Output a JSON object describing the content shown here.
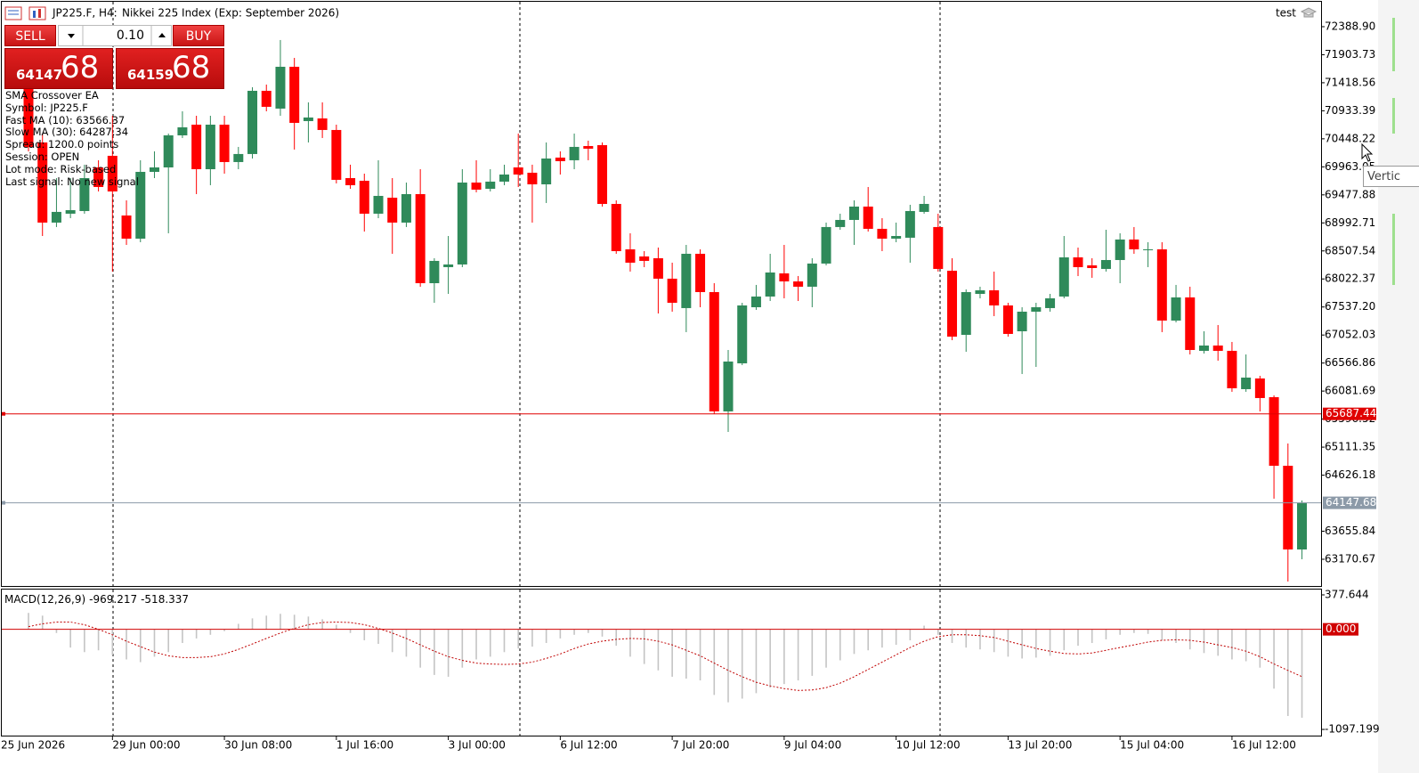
{
  "header": {
    "symbol": "JP225.F, H4:",
    "description": "Nikkei 225 Index (Exp: September 2026)",
    "account": "test"
  },
  "trade_panel": {
    "sell": "SELL",
    "buy": "BUY",
    "lot": "0.10",
    "sell_main": "64147",
    "sell_pips": "68",
    "buy_main": "64159",
    "buy_pips": "68"
  },
  "info_lines": [
    "SMA Crossover EA",
    "Symbol: JP225.F",
    "Fast MA (10): 63566.37",
    "Slow MA (30): 64287.34",
    "Spread: 1200.0 points",
    "Session: OPEN",
    "Lot mode: Risk-based",
    "Last signal: No new signal"
  ],
  "tooltip": "Vertic",
  "chart_data": [
    {
      "type": "candlestick",
      "up_color": "#2f8a5a",
      "down_color": "#ff0000",
      "period_start": "25 Jun 2026",
      "categories": [
        null,
        null,
        null,
        null,
        null,
        null,
        "29 Jun 00:00",
        null,
        null,
        null,
        null,
        null,
        null,
        null,
        "30 Jun 08:00",
        null,
        null,
        null,
        null,
        null,
        null,
        null,
        "1 Jul 16:00",
        null,
        null,
        null,
        null,
        null,
        null,
        null,
        "3 Jul 00:00",
        null,
        null,
        null,
        null,
        null,
        null,
        null,
        "6 Jul 12:00",
        null,
        null,
        null,
        null,
        null,
        null,
        null,
        "7 Jul 20:00",
        null,
        null,
        null,
        null,
        null,
        null,
        null,
        "9 Jul 04:00",
        null,
        null,
        null,
        null,
        null,
        null,
        null,
        "10 Jul 12:00",
        null,
        null,
        null,
        null,
        null,
        null,
        null,
        "13 Jul 20:00",
        null,
        null,
        null,
        null,
        null,
        null,
        null,
        "15 Jul 04:00",
        null,
        null,
        null,
        null,
        null,
        null,
        null,
        "16 Jul 12:00",
        null,
        null,
        null,
        null,
        null
      ],
      "ohlc": [
        [
          71310,
          71387,
          70231,
          70308
        ],
        [
          70385,
          70539,
          68766,
          68998
        ],
        [
          68998,
          69768,
          68921,
          69183
        ],
        [
          69152,
          69768,
          69075,
          69213
        ],
        [
          69198,
          70000,
          69152,
          69768
        ],
        [
          69953,
          70077,
          69537,
          69614
        ],
        [
          70154,
          70847,
          68150,
          69537
        ],
        [
          69121,
          69383,
          68612,
          68720
        ],
        [
          68720,
          70077,
          68658,
          69876
        ],
        [
          69876,
          70231,
          69768,
          69953
        ],
        [
          69953,
          70539,
          68813,
          70508
        ],
        [
          70508,
          70924,
          70462,
          70647
        ],
        [
          70693,
          70847,
          69491,
          69922
        ],
        [
          69922,
          70847,
          69645,
          70693
        ],
        [
          70693,
          70847,
          69845,
          70046
        ],
        [
          70046,
          70308,
          69922,
          70185
        ],
        [
          70185,
          71341,
          70107,
          71279
        ],
        [
          71279,
          71387,
          70924,
          71002
        ],
        [
          70971,
          72158,
          70847,
          71695
        ],
        [
          71695,
          71849,
          70262,
          70724
        ],
        [
          70755,
          71079,
          70385,
          70817
        ],
        [
          70801,
          71079,
          70462,
          70601
        ],
        [
          70601,
          70693,
          69676,
          69738
        ],
        [
          69768,
          70000,
          69583,
          69645
        ],
        [
          69722,
          69845,
          68843,
          69152
        ],
        [
          69152,
          70077,
          69075,
          69460
        ],
        [
          69429,
          69768,
          68458,
          68998
        ],
        [
          68998,
          69691,
          68921,
          69491
        ],
        [
          69491,
          69922,
          67888,
          67949
        ],
        [
          67949,
          68381,
          67610,
          68335
        ],
        [
          68227,
          68766,
          67764,
          68273
        ],
        [
          68273,
          69922,
          68227,
          69691
        ],
        [
          69691,
          70077,
          69522,
          69568
        ],
        [
          69583,
          69922,
          69537,
          69707
        ],
        [
          69707,
          70000,
          69645,
          69830
        ],
        [
          69953,
          70539,
          69614,
          69830
        ],
        [
          69861,
          70000,
          68998,
          69660
        ],
        [
          69660,
          70385,
          69337,
          70107
        ],
        [
          70123,
          70231,
          69830,
          70061
        ],
        [
          70077,
          70539,
          69922,
          70308
        ],
        [
          70323,
          70416,
          70077,
          70277
        ],
        [
          70339,
          70385,
          69275,
          69321
        ],
        [
          69321,
          69383,
          68458,
          68504
        ],
        [
          68535,
          68813,
          68150,
          68304
        ],
        [
          68412,
          68504,
          68227,
          68335
        ],
        [
          68381,
          68566,
          67425,
          68027
        ],
        [
          68027,
          68304,
          67456,
          67610
        ],
        [
          67518,
          68612,
          67102,
          68458
        ],
        [
          68458,
          68535,
          67533,
          67795
        ],
        [
          67795,
          67949,
          65683,
          65730
        ],
        [
          65730,
          66793,
          65375,
          66593
        ],
        [
          66562,
          67610,
          66531,
          67564
        ],
        [
          67533,
          67919,
          67487,
          67718
        ],
        [
          67718,
          68458,
          67641,
          68134
        ],
        [
          68119,
          68612,
          67687,
          67980
        ],
        [
          67980,
          68073,
          67641,
          67888
        ],
        [
          67888,
          68381,
          67533,
          68289
        ],
        [
          68289,
          68998,
          68258,
          68921
        ],
        [
          68921,
          69152,
          68874,
          69044
        ],
        [
          69044,
          69383,
          68612,
          69275
        ],
        [
          69275,
          69614,
          68843,
          68890
        ],
        [
          68890,
          69075,
          68504,
          68720
        ],
        [
          68720,
          68998,
          68658,
          68766
        ],
        [
          68736,
          69306,
          68304,
          69198
        ],
        [
          69183,
          69460,
          69152,
          69321
        ],
        [
          68921,
          69152,
          68150,
          68196
        ],
        [
          68165,
          68381,
          66963,
          67024
        ],
        [
          67055,
          67841,
          66762,
          67795
        ],
        [
          67764,
          67888,
          67687,
          67826
        ],
        [
          67826,
          68150,
          67379,
          67564
        ],
        [
          67564,
          67610,
          67024,
          67071
        ],
        [
          67117,
          67533,
          66377,
          67456
        ],
        [
          67456,
          67610,
          66500,
          67533
        ],
        [
          67518,
          67764,
          67456,
          67687
        ],
        [
          67718,
          68766,
          67687,
          68396
        ],
        [
          68396,
          68566,
          68073,
          68227
        ],
        [
          68258,
          68381,
          68042,
          68211
        ],
        [
          68196,
          68874,
          68150,
          68350
        ],
        [
          68350,
          68813,
          67949,
          68705
        ],
        [
          68705,
          68921,
          68458,
          68535
        ],
        [
          68520,
          68658,
          68227,
          68535
        ],
        [
          68535,
          68658,
          67102,
          67302
        ],
        [
          67302,
          67919,
          67271,
          67703
        ],
        [
          67703,
          67888,
          66716,
          66793
        ],
        [
          66778,
          67117,
          66732,
          66870
        ],
        [
          66870,
          67225,
          66608,
          66778
        ],
        [
          66778,
          66932,
          66069,
          66130
        ],
        [
          66115,
          66716,
          66069,
          66315
        ],
        [
          66300,
          66346,
          65730,
          65961
        ],
        [
          65976,
          66007,
          64219,
          64789
        ],
        [
          64789,
          65175,
          62785,
          63340
        ],
        [
          63340,
          64188,
          63171,
          64148
        ]
      ],
      "ylim": [
        62708,
        72820
      ],
      "yticks": [
        {
          "value": 72388.9,
          "label": "72388.90"
        },
        71903.73,
        71418.56,
        70933.39,
        70448.22,
        69963.05,
        69477.88,
        68992.71,
        68507.54,
        68022.37,
        {
          "value": 67537.2,
          "label": "67537.20"
        },
        67052.03,
        66566.86,
        66081.69,
        65596.52,
        65111.35,
        64626.18,
        63655.84,
        63170.67
      ],
      "hlines": [
        {
          "value": 65687.44,
          "color": "#e00000"
        },
        {
          "value": 64147.68,
          "color": "#8c9aa8"
        }
      ]
    },
    {
      "type": "macd",
      "label": "MACD(12,26,9)",
      "histogram": {
        "color": "#c4c4c4",
        "values": [
          180,
          150,
          -40,
          -200,
          -250,
          -230,
          -280,
          -330,
          -360,
          -300,
          -250,
          -150,
          -100,
          -60,
          -20,
          60,
          120,
          150,
          170,
          160,
          140,
          110,
          50,
          -40,
          -120,
          -160,
          -250,
          -300,
          -420,
          -500,
          -520,
          -420,
          -330,
          -300,
          -250,
          -210,
          -190,
          -150,
          -100,
          -60,
          -40,
          -80,
          -180,
          -300,
          -380,
          -450,
          -520,
          -540,
          -560,
          -720,
          -800,
          -760,
          -700,
          -640,
          -600,
          -560,
          -510,
          -420,
          -340,
          -270,
          -230,
          -200,
          -170,
          -120,
          40,
          -60,
          -150,
          -200,
          -220,
          -250,
          -300,
          -320,
          -310,
          -290,
          -230,
          -180,
          -150,
          -110,
          -60,
          -40,
          -50,
          -120,
          -150,
          -220,
          -260,
          -290,
          -330,
          -350,
          -420,
          -650,
          -950,
          -969.217
        ]
      },
      "signal": {
        "color": "#c00000",
        "values": [
          30,
          60,
          80,
          80,
          50,
          0,
          -60,
          -130,
          -190,
          -250,
          -290,
          -310,
          -310,
          -300,
          -270,
          -220,
          -160,
          -100,
          -40,
          10,
          50,
          75,
          80,
          75,
          50,
          10,
          -40,
          -100,
          -170,
          -240,
          -300,
          -340,
          -370,
          -380,
          -385,
          -380,
          -360,
          -320,
          -270,
          -210,
          -160,
          -130,
          -110,
          -100,
          -105,
          -130,
          -170,
          -230,
          -290,
          -370,
          -450,
          -520,
          -580,
          -620,
          -650,
          -670,
          -665,
          -640,
          -590,
          -520,
          -440,
          -360,
          -280,
          -200,
          -130,
          -80,
          -60,
          -60,
          -70,
          -90,
          -130,
          -170,
          -210,
          -240,
          -265,
          -270,
          -260,
          -230,
          -200,
          -170,
          -140,
          -120,
          -115,
          -120,
          -140,
          -170,
          -200,
          -240,
          -300,
          -380,
          -450,
          -518.337
        ]
      },
      "ylim": [
        -1165,
        436
      ],
      "yticks": [
        377.644,
        {
          "value": 0,
          "label": "0.000"
        },
        -1097.199
      ],
      "zero_line_color": "#d00000"
    }
  ]
}
